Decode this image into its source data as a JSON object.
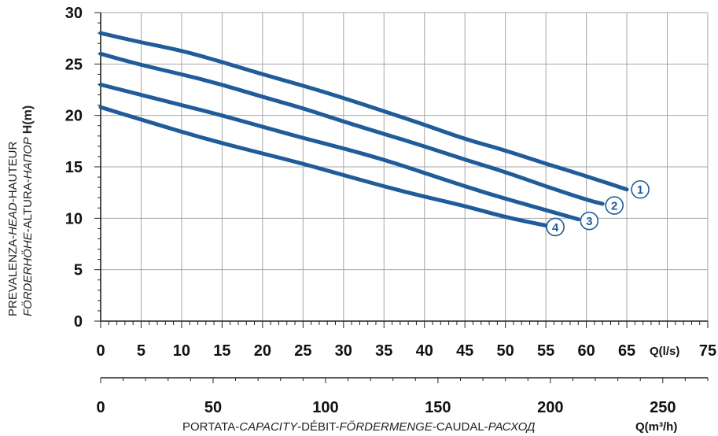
{
  "chart_data": {
    "type": "line",
    "ylabel_line1": "PREVALENZA-",
    "ylabel_line1_i": "HEAD",
    "ylabel_line1_b": "-HAUTEUR",
    "ylabel_line2_i1": "FÖRDERHÖHE",
    "ylabel_line2_b": "-ALTURA-",
    "ylabel_line2_i2": "НАПОР",
    "ylabel_unit": "H(m)",
    "xlabel_a": "PORTATA-",
    "xlabel_b": "CAPACITY",
    "xlabel_c": "-DÉBIT-",
    "xlabel_d": "FÖRDERMENGE",
    "xlabel_e": "-CAUDAL-",
    "xlabel_f": "РАСХОД",
    "x_unit_ls": "Q(l/s)",
    "x_unit_m3h": "Q(m³/h)",
    "ylim": [
      0,
      30
    ],
    "xlim": [
      0,
      75
    ],
    "grid": true,
    "y_ticks": [
      "0",
      "5",
      "10",
      "15",
      "20",
      "25",
      "30"
    ],
    "x_ticks_ls": [
      "0",
      "5",
      "10",
      "15",
      "20",
      "25",
      "30",
      "35",
      "40",
      "45",
      "50",
      "55",
      "60",
      "65",
      "75"
    ],
    "x_ticks_m3h": [
      "0",
      "50",
      "100",
      "150",
      "200",
      "250"
    ],
    "line_color": "#1f5c99",
    "series": [
      {
        "name": "1",
        "x": [
          0,
          5,
          10,
          15,
          20,
          25,
          30,
          35,
          40,
          45,
          50,
          55,
          60,
          65
        ],
        "y": [
          28.0,
          27.1,
          26.3,
          25.2,
          24.0,
          22.9,
          21.7,
          20.4,
          19.1,
          17.7,
          16.6,
          15.3,
          14.1,
          12.8
        ]
      },
      {
        "name": "2",
        "x": [
          0,
          5,
          10,
          15,
          20,
          25,
          30,
          35,
          40,
          45,
          50,
          55,
          60,
          62
        ],
        "y": [
          26.0,
          24.9,
          24.0,
          23.0,
          21.8,
          20.7,
          19.4,
          18.2,
          17.0,
          15.7,
          14.5,
          13.1,
          11.8,
          11.4
        ]
      },
      {
        "name": "3",
        "x": [
          0,
          5,
          10,
          15,
          20,
          25,
          30,
          35,
          40,
          45,
          50,
          55,
          59
        ],
        "y": [
          23.0,
          22.0,
          21.0,
          20.0,
          18.9,
          17.8,
          16.8,
          15.7,
          14.4,
          13.1,
          11.9,
          10.8,
          9.9
        ]
      },
      {
        "name": "4",
        "x": [
          0,
          5,
          10,
          15,
          20,
          25,
          30,
          35,
          40,
          45,
          50,
          55
        ],
        "y": [
          20.8,
          19.6,
          18.4,
          17.3,
          16.3,
          15.3,
          14.2,
          13.1,
          12.1,
          11.2,
          10.1,
          9.3
        ]
      }
    ]
  }
}
